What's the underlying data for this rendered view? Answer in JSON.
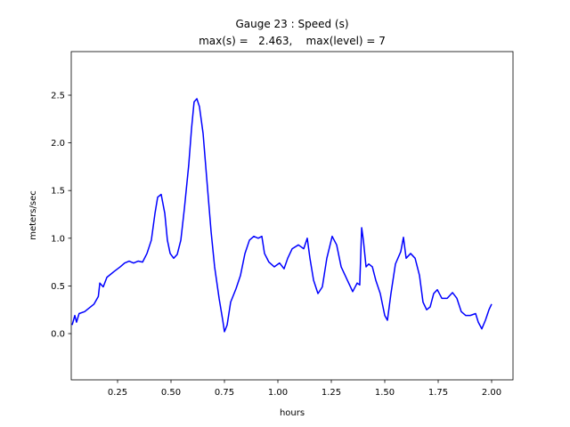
{
  "chart_data": {
    "type": "line",
    "title": "Gauge 23 : Speed (s)",
    "subtitle": "max(s) =   2.463,    max(level) = 7",
    "xlabel": "hours",
    "ylabel": "meters/sec",
    "color": "#0000ff",
    "xlim": [
      0.0333,
      2.1
    ],
    "ylim": [
      -0.485,
      2.957
    ],
    "xticks": [
      0.25,
      {
        "value": 0.5,
        "label": "0.50"
      },
      0.75,
      {
        "value": 1.0,
        "label": "1.00"
      },
      1.25,
      {
        "value": 1.5,
        "label": "1.50"
      },
      1.75,
      {
        "value": 2.0,
        "label": "2.00"
      }
    ],
    "yticks": [
      {
        "value": 0.0,
        "label": "0.0"
      },
      0.5,
      {
        "value": 1.0,
        "label": "1.0"
      },
      1.5,
      {
        "value": 2.0,
        "label": "2.0"
      },
      2.5
    ],
    "x": [
      0.0375,
      0.05,
      0.058,
      0.07,
      0.096,
      0.14,
      0.16,
      0.167,
      0.183,
      0.2,
      0.233,
      0.2625,
      0.283,
      0.304,
      0.325,
      0.346,
      0.367,
      0.3875,
      0.408,
      0.425,
      0.4375,
      0.454,
      0.471,
      0.483,
      0.496,
      0.5125,
      0.529,
      0.546,
      0.5625,
      0.583,
      0.596,
      0.608,
      0.621,
      0.633,
      0.65,
      0.667,
      0.6875,
      0.704,
      0.725,
      0.742,
      0.75,
      0.7625,
      0.779,
      0.804,
      0.825,
      0.846,
      0.867,
      0.8875,
      0.908,
      0.925,
      0.9375,
      0.958,
      0.983,
      1.008,
      1.029,
      1.046,
      1.067,
      1.096,
      1.121,
      1.1375,
      1.15,
      1.167,
      1.1875,
      1.208,
      1.229,
      1.254,
      1.275,
      1.296,
      1.325,
      1.35,
      1.371,
      1.383,
      1.392,
      1.4,
      1.4125,
      1.425,
      1.442,
      1.458,
      1.479,
      1.5,
      1.5125,
      1.529,
      1.55,
      1.575,
      1.5875,
      1.6,
      1.621,
      1.642,
      1.6625,
      1.679,
      1.696,
      1.7125,
      1.729,
      1.746,
      1.767,
      1.792,
      1.817,
      1.8375,
      1.858,
      1.879,
      1.9,
      1.925,
      1.9375,
      1.954,
      1.971,
      1.9875,
      2.0
    ],
    "values": [
      0.09,
      0.19,
      0.12,
      0.21,
      0.23,
      0.31,
      0.39,
      0.53,
      0.49,
      0.59,
      0.65,
      0.7,
      0.74,
      0.76,
      0.74,
      0.76,
      0.75,
      0.84,
      0.98,
      1.26,
      1.43,
      1.46,
      1.26,
      0.98,
      0.84,
      0.79,
      0.83,
      0.98,
      1.31,
      1.77,
      2.15,
      2.43,
      2.463,
      2.38,
      2.1,
      1.63,
      1.07,
      0.7,
      0.37,
      0.14,
      0.02,
      0.09,
      0.33,
      0.47,
      0.61,
      0.84,
      0.98,
      1.02,
      1.0,
      1.02,
      0.84,
      0.75,
      0.7,
      0.74,
      0.68,
      0.79,
      0.89,
      0.93,
      0.89,
      1.0,
      0.79,
      0.56,
      0.42,
      0.49,
      0.79,
      1.02,
      0.93,
      0.7,
      0.56,
      0.44,
      0.53,
      0.51,
      1.11,
      0.98,
      0.7,
      0.73,
      0.7,
      0.56,
      0.42,
      0.19,
      0.14,
      0.42,
      0.73,
      0.86,
      1.01,
      0.79,
      0.84,
      0.79,
      0.61,
      0.33,
      0.25,
      0.28,
      0.42,
      0.46,
      0.37,
      0.37,
      0.43,
      0.37,
      0.23,
      0.19,
      0.19,
      0.21,
      0.12,
      0.05,
      0.14,
      0.25,
      0.31
    ]
  }
}
